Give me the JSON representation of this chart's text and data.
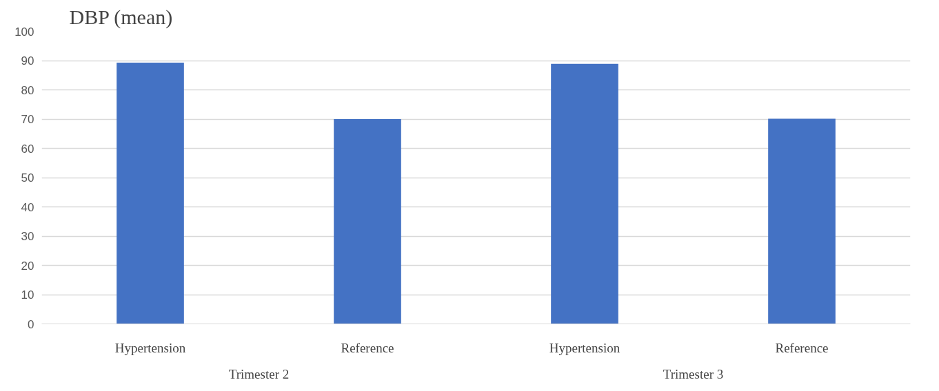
{
  "chart_data": {
    "type": "bar",
    "title": "DBP (mean)",
    "categories": [
      "Hypertension",
      "Reference",
      "Hypertension",
      "Reference"
    ],
    "values": [
      89.3,
      70,
      88.9,
      70.1
    ],
    "color": "#4472c4",
    "ylim": [
      0,
      100
    ],
    "yticks": [
      0,
      10,
      20,
      30,
      40,
      50,
      60,
      70,
      80,
      90,
      100
    ],
    "grid": "y",
    "annotations": [
      "Trimester 2",
      "Trimester 3"
    ]
  }
}
